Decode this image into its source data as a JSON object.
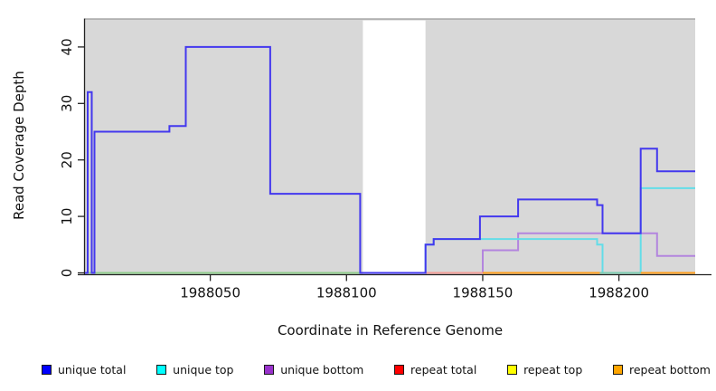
{
  "chart_data": {
    "type": "line",
    "subtype": "step-coverage-plot",
    "title": "",
    "xlabel": "Coordinate in Reference Genome",
    "ylabel": "Read Coverage Depth",
    "xlim": [
      1988004,
      1988228
    ],
    "ylim": [
      0,
      45
    ],
    "x_ticks": [
      1988050,
      1988100,
      1988150,
      1988200
    ],
    "y_ticks": [
      0,
      10,
      20,
      30,
      40
    ],
    "grid": false,
    "legend_position": "bottom",
    "background_band": {
      "fill": "#d8d8d8",
      "top_border_color": "#a5a5a5",
      "x_start": 1988004,
      "x_end": 1988228,
      "y_top": 45,
      "gap": {
        "x_start": 1988106,
        "x_end": 1988129,
        "fill": "#ffffff"
      }
    },
    "series": [
      {
        "name": "unique total",
        "swatch": "#0000ff",
        "line_color": "#4338ee",
        "points": [
          [
            1988004,
            0
          ],
          [
            1988005,
            32
          ],
          [
            1988006.5,
            0
          ],
          [
            1988007.5,
            25
          ],
          [
            1988035,
            26
          ],
          [
            1988041,
            40
          ],
          [
            1988072,
            14
          ],
          [
            1988105,
            0
          ],
          [
            1988129,
            5
          ],
          [
            1988132,
            6
          ],
          [
            1988149,
            10
          ],
          [
            1988163,
            13
          ],
          [
            1988192,
            12
          ],
          [
            1988194,
            7
          ],
          [
            1988208,
            22
          ],
          [
            1988214,
            18
          ]
        ]
      },
      {
        "name": "unique top",
        "swatch": "#00ffff",
        "line_color": "#63dde8",
        "points": [
          [
            1988004,
            0
          ],
          [
            1988129,
            5
          ],
          [
            1988132,
            6
          ],
          [
            1988192,
            5
          ],
          [
            1988194,
            0
          ],
          [
            1988208,
            15
          ]
        ]
      },
      {
        "name": "unique bottom",
        "swatch": "#9932cc",
        "line_color": "#b385de",
        "points": [
          [
            1988004,
            0
          ],
          [
            1988150,
            4
          ],
          [
            1988163,
            7
          ],
          [
            1988214,
            3
          ]
        ]
      },
      {
        "name": "repeat total",
        "swatch": "#ff0000",
        "line_color": "#e02020",
        "points": [
          [
            1988004,
            0
          ]
        ]
      },
      {
        "name": "repeat top",
        "swatch": "#ffff00",
        "line_color": "#f0e430",
        "points": [
          [
            1988004,
            0
          ]
        ]
      },
      {
        "name": "repeat bottom",
        "swatch": "#ffa500",
        "line_color": "#ff9e1b",
        "points": [
          [
            1988004,
            0
          ]
        ]
      }
    ],
    "zero_line_overlaps": [
      {
        "x_start": 1988004,
        "x_end": 1988105,
        "color": "#8fcd8c"
      },
      {
        "x_start": 1988129,
        "x_end": 1988150,
        "color": "#f29b95"
      },
      {
        "x_start": 1988150,
        "x_end": 1988193,
        "color": "#ff9e1b"
      },
      {
        "x_start": 1988193,
        "x_end": 1988208,
        "color": "#7bccb0"
      },
      {
        "x_start": 1988208,
        "x_end": 1988228,
        "color": "#ff9e1b"
      }
    ],
    "axis_color": "#222222",
    "tick_label_color": "#111111"
  }
}
